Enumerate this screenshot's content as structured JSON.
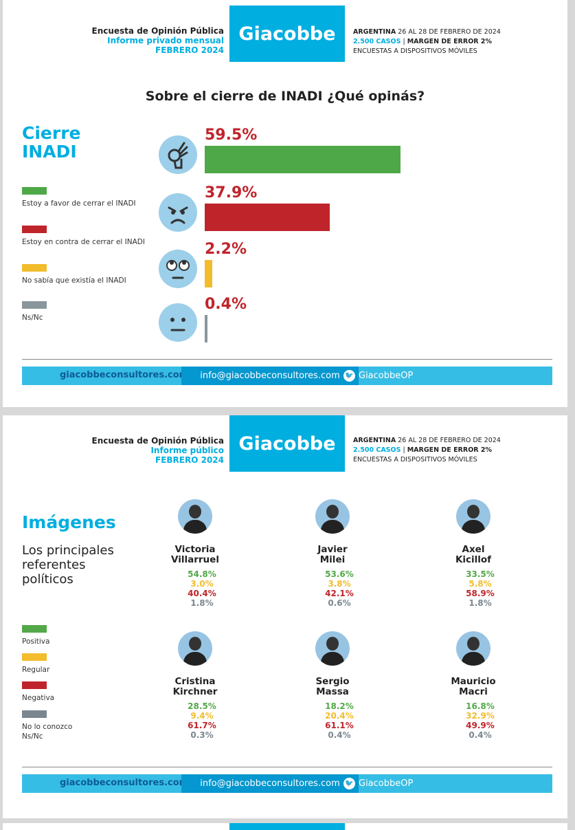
{
  "header": {
    "title": "Encuesta de Opinión Pública",
    "brand": "Giacobbe",
    "country": "ARGENTINA",
    "dates": "26 AL 28 DE FEBRERO DE 2024",
    "cases": "2.500 CASOS",
    "sep": "|",
    "margin": "MARGEN DE ERROR 2%",
    "method": "ENCUESTAS A DISPOSITIVOS MÓVILES"
  },
  "slide1": {
    "report": "Informe privado mensual",
    "month": "FEBRERO 2024",
    "question": "Sobre el cierre de INADI ¿Qué opinás?",
    "title_line1": "Cierre",
    "title_line2": "INADI"
  },
  "slide2": {
    "report": "Informe público",
    "month": "FEBRERO 2024",
    "title": "Imágenes",
    "subtitle_line1": "Los principales",
    "subtitle_line2": "referentes",
    "subtitle_line3": "políticos"
  },
  "footer": {
    "site": "giacobbeconsultores.com",
    "email": "info@giacobbeconsultores.com",
    "twitter": "GiacobbeOP",
    "twitter_icon": "twitter-icon"
  },
  "chart_data": [
    {
      "type": "bar",
      "orientation": "horizontal",
      "title": "Sobre el cierre de INADI ¿Qué opinás?",
      "categories": [
        "Estoy a favor de cerrar el INADI",
        "Estoy en contra de cerrar el INADI",
        "No sabía que existía el INADI",
        "Ns/Nc"
      ],
      "values": [
        59.5,
        37.9,
        2.2,
        0.4
      ],
      "labels": [
        "59.5%",
        "37.9%",
        "2.2%",
        "0.4%"
      ],
      "colors": [
        "#4fa847",
        "#c0242b",
        "#f2bc2c",
        "#8a969c"
      ],
      "icons": [
        "ok-hand-icon",
        "angry-face-icon",
        "eye-roll-face-icon",
        "neutral-face-icon"
      ],
      "legend_placement": "left"
    },
    {
      "type": "table",
      "title": "Imágenes",
      "legend": [
        {
          "label": "Positiva",
          "color": "#53a848"
        },
        {
          "label": "Regular",
          "color": "#f2bc2c"
        },
        {
          "label": "Negativa",
          "color": "#c0242b"
        },
        {
          "label": "No lo conozco",
          "label2": "Ns/Nc",
          "color": "#7a8790"
        }
      ],
      "people": [
        {
          "first": "Victoria",
          "last": "Villarruel",
          "values": [
            "54.8%",
            "3.0%",
            "40.4%",
            "1.8%"
          ]
        },
        {
          "first": "Javier",
          "last": "Milei",
          "values": [
            "53.6%",
            "3.8%",
            "42.1%",
            "0.6%"
          ]
        },
        {
          "first": "Axel",
          "last": "Kicillof",
          "values": [
            "33.5%",
            "5.8%",
            "58.9%",
            "1.8%"
          ]
        },
        {
          "first": "Cristina",
          "last": "Kirchner",
          "values": [
            "28.5%",
            "9.4%",
            "61.7%",
            "0.3%"
          ]
        },
        {
          "first": "Sergio",
          "last": "Massa",
          "values": [
            "18.2%",
            "20.4%",
            "61.1%",
            "0.4%"
          ]
        },
        {
          "first": "Mauricio",
          "last": "Macri",
          "values": [
            "16.8%",
            "32.9%",
            "49.9%",
            "0.4%"
          ]
        }
      ]
    }
  ]
}
